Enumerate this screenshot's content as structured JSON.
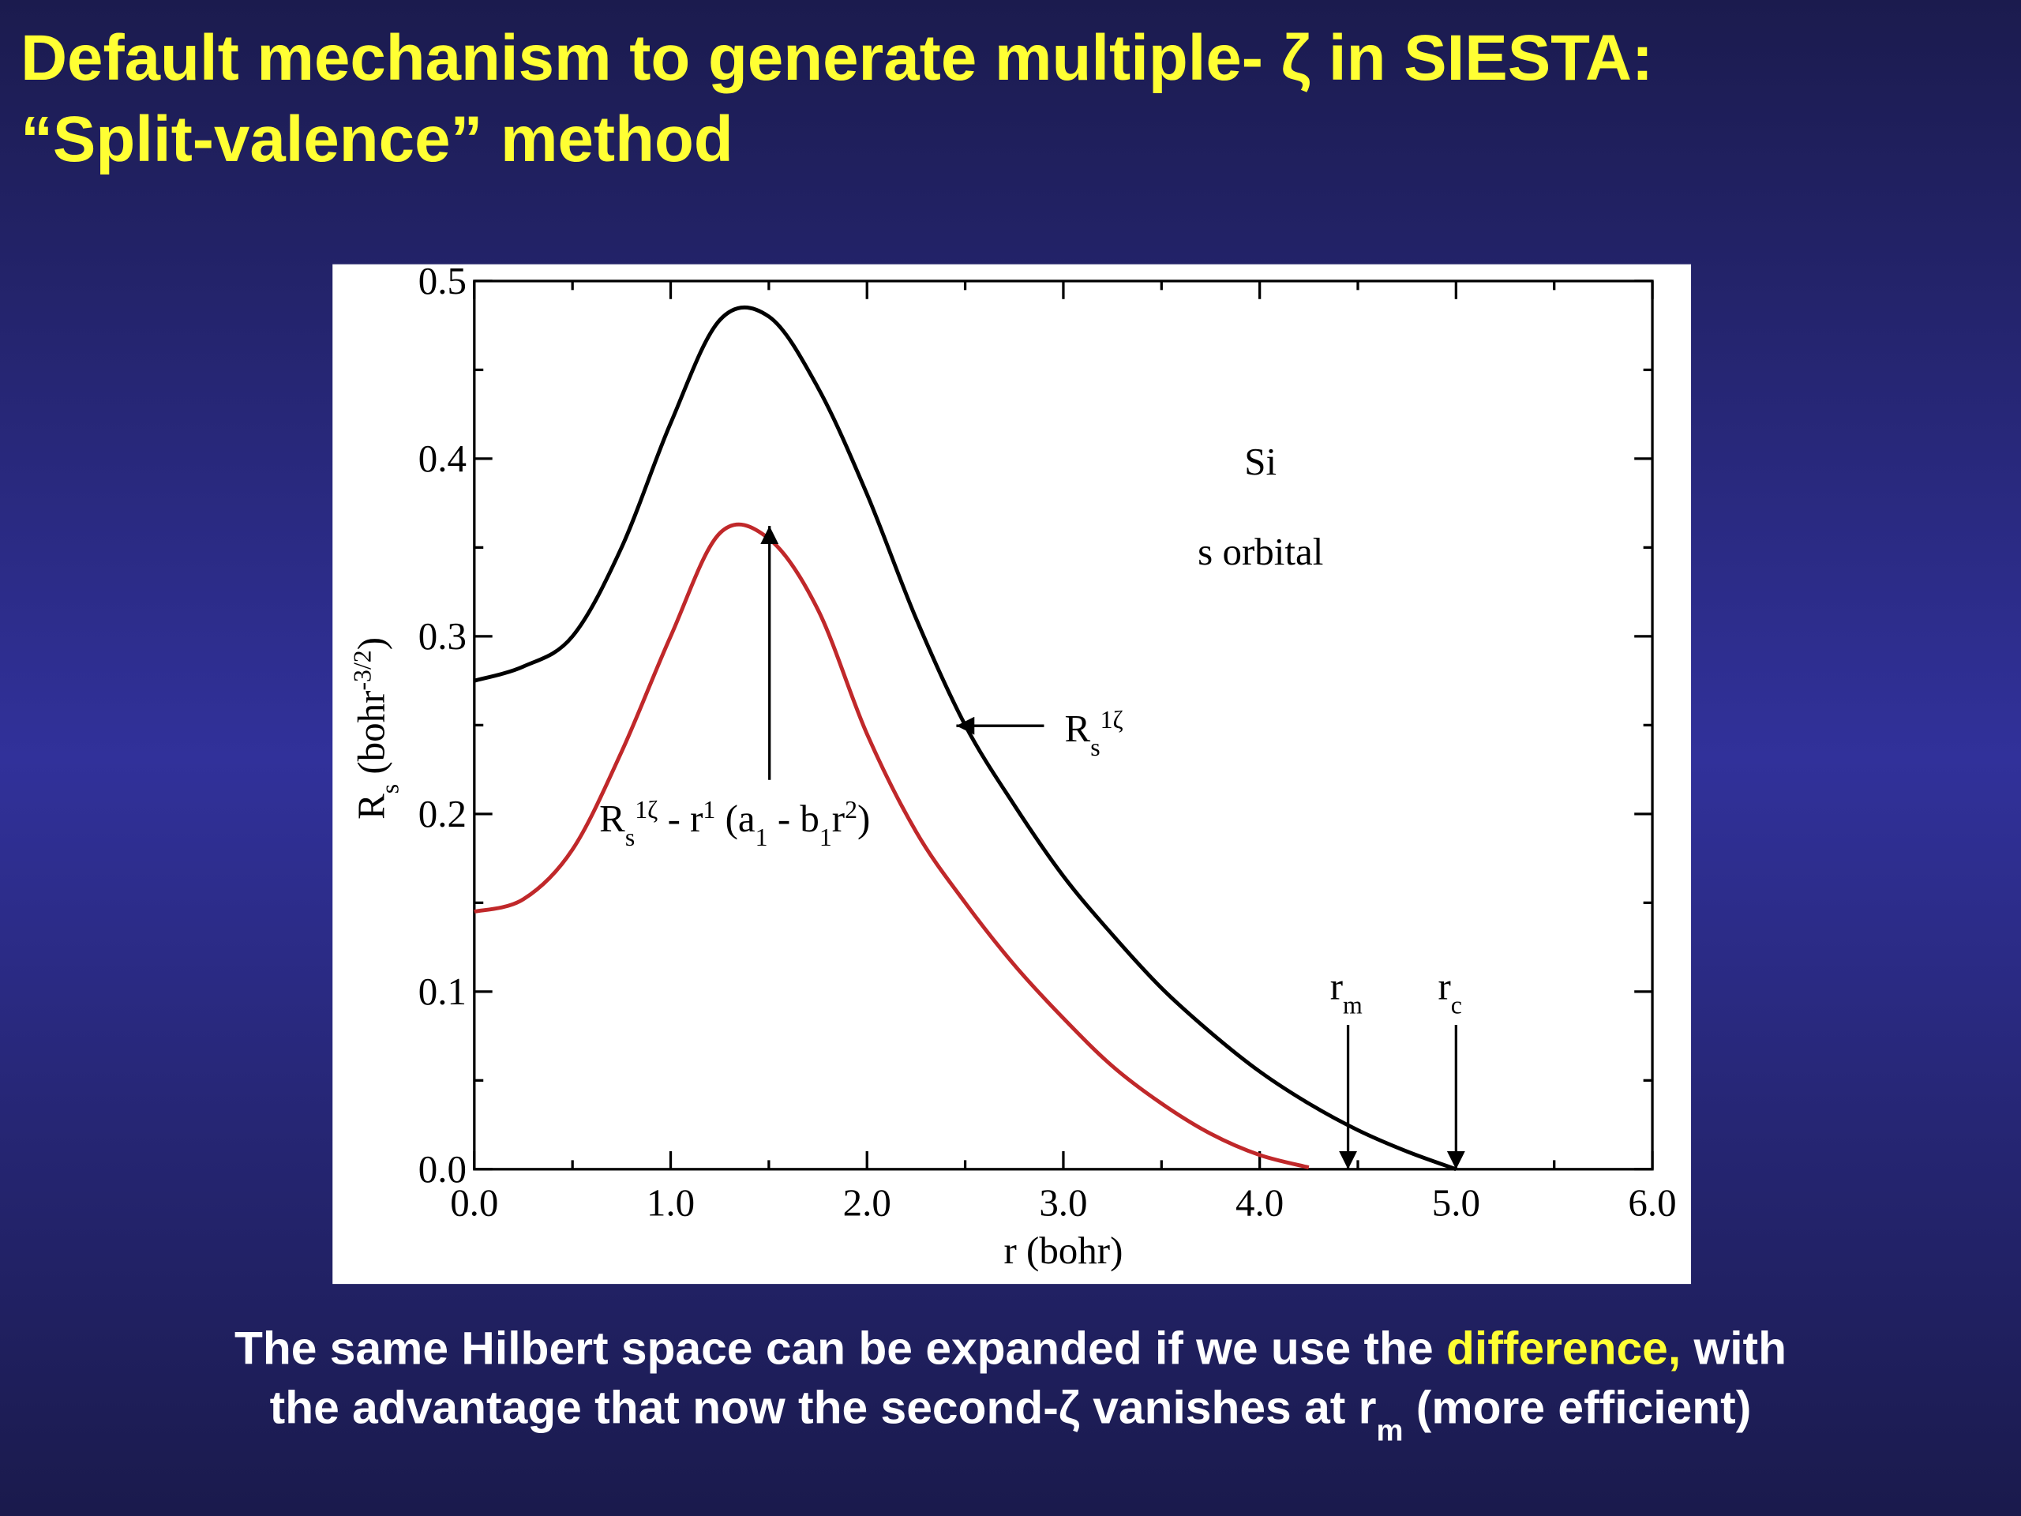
{
  "slide": {
    "title": [
      "Default mechanism to generate multiple- ζ in SIESTA:",
      "“Split-valence” method"
    ],
    "caption": [
      [
        {
          "text": "The same Hilbert space can be expanded if we use the "
        },
        {
          "text": "difference,",
          "highlight": true
        },
        {
          "text": " with"
        }
      ],
      [
        {
          "text": "the advantage that now the second-ζ vanishes at r"
        },
        {
          "text": "m",
          "pos": "sub"
        },
        {
          "text": " (more efficient)"
        }
      ]
    ]
  },
  "chart_data": {
    "type": "line",
    "x": [
      0,
      0.25,
      0.5,
      0.75,
      1.0,
      1.25,
      1.5,
      1.75,
      2.0,
      2.25,
      2.5,
      2.75,
      3.0,
      3.25,
      3.5,
      3.75,
      4.0,
      4.25,
      4.5,
      4.75,
      5.0
    ],
    "series": [
      {
        "name": [
          {
            "text": "R"
          },
          {
            "text": "s",
            "pos": "sub"
          },
          {
            "text": "1ζ",
            "pos": "sup"
          }
        ],
        "color": "#000000",
        "values": [
          0.275,
          0.283,
          0.3,
          0.35,
          0.42,
          0.478,
          0.48,
          0.44,
          0.38,
          0.31,
          0.25,
          0.205,
          0.165,
          0.132,
          0.102,
          0.077,
          0.055,
          0.037,
          0.022,
          0.01,
          0
        ]
      },
      {
        "name": [
          {
            "text": "R"
          },
          {
            "text": "s",
            "pos": "sub"
          },
          {
            "text": "1ζ",
            "pos": "sup"
          },
          {
            "text": " - r"
          },
          {
            "text": "1",
            "pos": "sup"
          },
          {
            "text": " (a"
          },
          {
            "text": "1",
            "pos": "sub"
          },
          {
            "text": " - b"
          },
          {
            "text": "1",
            "pos": "sub"
          },
          {
            "text": "r"
          },
          {
            "text": "2",
            "pos": "sup"
          },
          {
            "text": ")"
          }
        ],
        "color": "#c0282a",
        "values": [
          0.145,
          0.152,
          0.18,
          0.235,
          0.3,
          0.358,
          0.355,
          0.315,
          0.245,
          0.19,
          0.15,
          0.115,
          0.085,
          0.058,
          0.037,
          0.02,
          0.008,
          0.001,
          null,
          null,
          null
        ]
      }
    ],
    "xlabel": [
      {
        "text": "r (bohr)"
      }
    ],
    "ylabel": [
      {
        "text": "R"
      },
      {
        "text": "s",
        "pos": "sub"
      },
      {
        "text": " (bohr"
      },
      {
        "text": "-3/2",
        "pos": "sup"
      },
      {
        "text": ")"
      }
    ],
    "xlim": [
      0,
      6
    ],
    "ylim": [
      0,
      0.5
    ],
    "xticks": [
      {
        "value": 0,
        "label": "0.0"
      },
      {
        "value": 1,
        "label": "1.0"
      },
      {
        "value": 2,
        "label": "2.0"
      },
      {
        "value": 3,
        "label": "3.0"
      },
      {
        "value": 4,
        "label": "4.0"
      },
      {
        "value": 5,
        "label": "5.0"
      },
      {
        "value": 6,
        "label": "6.0"
      }
    ],
    "yticks": [
      {
        "value": 0,
        "label": "0.0"
      },
      0.1,
      0.2,
      0.3,
      0.4,
      0.5
    ],
    "xminorticks": [
      0.5,
      1.5,
      2.5,
      3.5,
      4.5,
      5.5
    ],
    "yminorticks": [
      0.05,
      0.15,
      0.25,
      0.35,
      0.45
    ],
    "annotations": [
      "Si",
      "s orbital"
    ],
    "markers": [
      {
        "x": 4.45,
        "label": [
          {
            "text": "r"
          },
          {
            "text": "m",
            "pos": "sub"
          }
        ]
      },
      {
        "x": 5.0,
        "label": [
          {
            "text": "r"
          },
          {
            "text": "c",
            "pos": "sub"
          }
        ]
      }
    ]
  }
}
